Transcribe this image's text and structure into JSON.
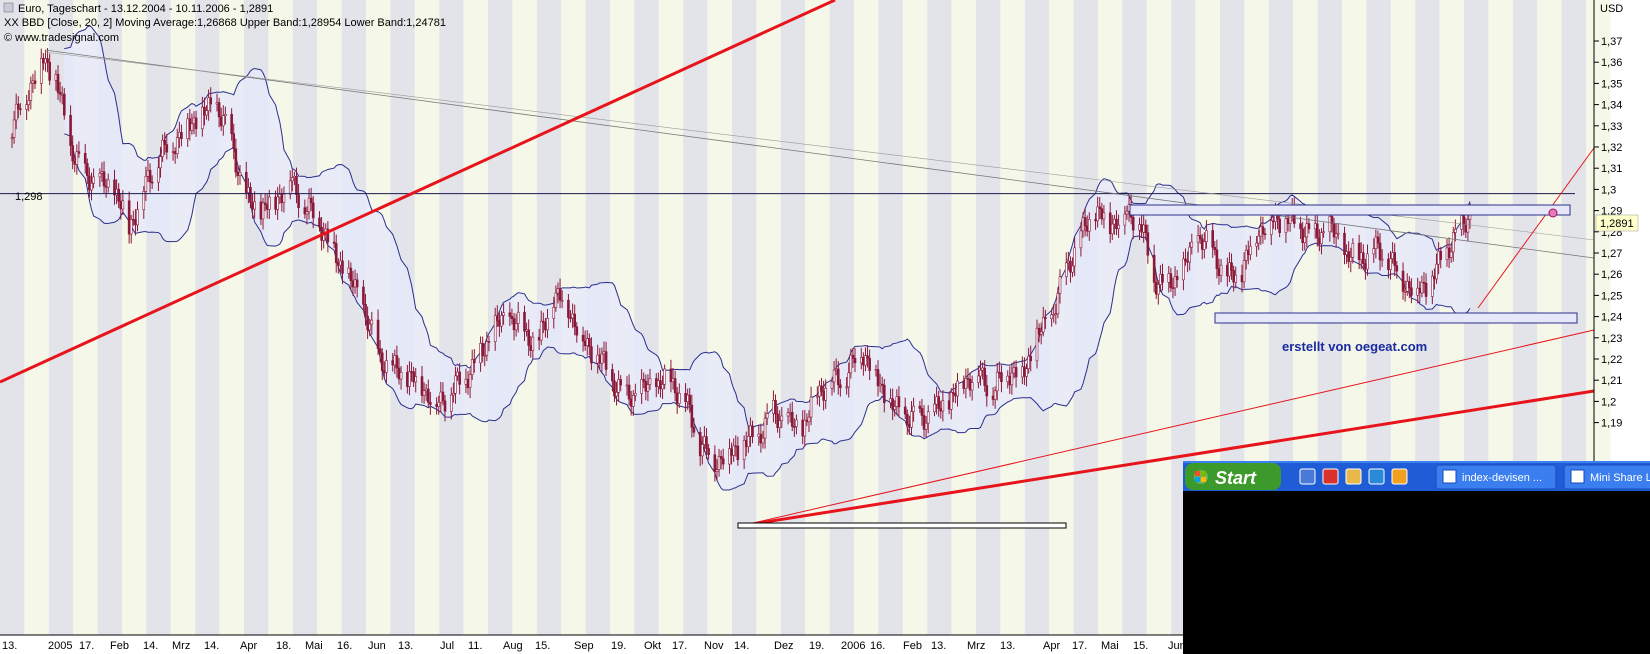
{
  "header": {
    "line1": "Euro, Tageschart - 13.12.2004 - 10.11.2006 - 1,2891",
    "line2": "XX BBD [Close, 20, 2] Moving Average:1,26868 Upper Band:1,28954 Lower Band:1,24781",
    "line3": "© www.tradesignal.com"
  },
  "colors": {
    "band_fill": "#e6e8fa",
    "band_line": "#2b2f8c",
    "stripe_gray": "#e2e4ea",
    "stripe_cream": "#f5f8e8",
    "candle": "#8a1838",
    "trend_red": "#e8141c",
    "level_line": "#1a1a50",
    "annotation_text": "#1a2aa0",
    "taskbar_blue": "#1f5dd6",
    "start_green": "#3c9a2c"
  },
  "chart_data": {
    "type": "candlestick",
    "instrument": "Euro",
    "interval": "Tageschart",
    "range": "13.12.2004 - 10.11.2006",
    "last_value": 1.2891,
    "currency_label": "USD",
    "ylim": [
      1.18,
      1.38
    ],
    "y_ticks": [
      1.37,
      1.36,
      1.35,
      1.34,
      1.33,
      1.32,
      1.31,
      1.3,
      1.29,
      1.28,
      1.27,
      1.26,
      1.25,
      1.24,
      1.23,
      1.22,
      1.21,
      1.2,
      1.19
    ],
    "y_tick_labels": [
      "1,37",
      "1,36",
      "1,35",
      "1,34",
      "1,33",
      "1,32",
      "1,31",
      "1,3",
      "1,29",
      "1,28",
      "1,27",
      "1,26",
      "1,25",
      "1,24",
      "1,23",
      "1,22",
      "1,21",
      "1,2",
      "1,19"
    ],
    "x_tick_labels": [
      "13.",
      "2005",
      "17.",
      "Feb",
      "14.",
      "Mrz",
      "14.",
      "Apr",
      "18.",
      "Mai",
      "16.",
      "Jun",
      "13.",
      "Jul",
      "11.",
      "Aug",
      "15.",
      "Sep",
      "19.",
      "Okt",
      "17.",
      "Nov",
      "14.",
      "Dez",
      "19.",
      "2006",
      "16.",
      "Feb",
      "13.",
      "Mrz",
      "13.",
      "Apr",
      "17.",
      "Mai",
      "15.",
      "Jun"
    ],
    "level_label": "1,298",
    "level_value": 1.298,
    "last_value_label": "1,2891",
    "annotation": "erstellt von oegeat.com",
    "bollinger": {
      "source": "Close",
      "period": 20,
      "deviations": 2,
      "moving_average": 1.26868,
      "upper_band": 1.28954,
      "lower_band": 1.24781
    },
    "close_path": [
      {
        "date": "2004-12-13",
        "close": 1.33
      },
      {
        "date": "2004-12-20",
        "close": 1.345
      },
      {
        "date": "2004-12-28",
        "close": 1.362
      },
      {
        "date": "2005-01-03",
        "close": 1.352
      },
      {
        "date": "2005-01-10",
        "close": 1.32
      },
      {
        "date": "2005-01-17",
        "close": 1.307
      },
      {
        "date": "2005-01-24",
        "close": 1.303
      },
      {
        "date": "2005-01-31",
        "close": 1.3
      },
      {
        "date": "2005-02-07",
        "close": 1.282
      },
      {
        "date": "2005-02-14",
        "close": 1.3
      },
      {
        "date": "2005-02-21",
        "close": 1.315
      },
      {
        "date": "2005-02-28",
        "close": 1.322
      },
      {
        "date": "2005-03-07",
        "close": 1.33
      },
      {
        "date": "2005-03-14",
        "close": 1.335
      },
      {
        "date": "2005-03-21",
        "close": 1.34
      },
      {
        "date": "2005-03-28",
        "close": 1.322
      },
      {
        "date": "2005-04-04",
        "close": 1.295
      },
      {
        "date": "2005-04-11",
        "close": 1.29
      },
      {
        "date": "2005-04-18",
        "close": 1.295
      },
      {
        "date": "2005-04-25",
        "close": 1.305
      },
      {
        "date": "2005-05-02",
        "close": 1.292
      },
      {
        "date": "2005-05-09",
        "close": 1.285
      },
      {
        "date": "2005-05-16",
        "close": 1.27
      },
      {
        "date": "2005-05-23",
        "close": 1.258
      },
      {
        "date": "2005-05-30",
        "close": 1.245
      },
      {
        "date": "2005-06-06",
        "close": 1.222
      },
      {
        "date": "2005-06-13",
        "close": 1.215
      },
      {
        "date": "2005-06-20",
        "close": 1.212
      },
      {
        "date": "2005-06-27",
        "close": 1.208
      },
      {
        "date": "2005-07-04",
        "close": 1.198
      },
      {
        "date": "2005-07-11",
        "close": 1.205
      },
      {
        "date": "2005-07-18",
        "close": 1.212
      },
      {
        "date": "2005-07-25",
        "close": 1.222
      },
      {
        "date": "2005-08-01",
        "close": 1.235
      },
      {
        "date": "2005-08-08",
        "close": 1.24
      },
      {
        "date": "2005-08-15",
        "close": 1.232
      },
      {
        "date": "2005-08-22",
        "close": 1.228
      },
      {
        "date": "2005-08-29",
        "close": 1.25
      },
      {
        "date": "2005-09-05",
        "close": 1.245
      },
      {
        "date": "2005-09-12",
        "close": 1.228
      },
      {
        "date": "2005-09-19",
        "close": 1.222
      },
      {
        "date": "2005-09-26",
        "close": 1.21
      },
      {
        "date": "2005-10-03",
        "close": 1.202
      },
      {
        "date": "2005-10-10",
        "close": 1.205
      },
      {
        "date": "2005-10-17",
        "close": 1.208
      },
      {
        "date": "2005-10-24",
        "close": 1.21
      },
      {
        "date": "2005-10-31",
        "close": 1.2
      },
      {
        "date": "2005-11-07",
        "close": 1.18
      },
      {
        "date": "2005-11-14",
        "close": 1.172
      },
      {
        "date": "2005-11-21",
        "close": 1.176
      },
      {
        "date": "2005-11-28",
        "close": 1.18
      },
      {
        "date": "2005-12-05",
        "close": 1.184
      },
      {
        "date": "2005-12-12",
        "close": 1.195
      },
      {
        "date": "2005-12-19",
        "close": 1.19
      },
      {
        "date": "2005-12-26",
        "close": 1.186
      },
      {
        "date": "2006-01-02",
        "close": 1.205
      },
      {
        "date": "2006-01-09",
        "close": 1.21
      },
      {
        "date": "2006-01-16",
        "close": 1.212
      },
      {
        "date": "2006-01-23",
        "close": 1.225
      },
      {
        "date": "2006-01-30",
        "close": 1.212
      },
      {
        "date": "2006-02-06",
        "close": 1.198
      },
      {
        "date": "2006-02-13",
        "close": 1.193
      },
      {
        "date": "2006-02-20",
        "close": 1.192
      },
      {
        "date": "2006-02-27",
        "close": 1.195
      },
      {
        "date": "2006-03-06",
        "close": 1.2
      },
      {
        "date": "2006-03-13",
        "close": 1.21
      },
      {
        "date": "2006-03-20",
        "close": 1.213
      },
      {
        "date": "2006-03-27",
        "close": 1.205
      },
      {
        "date": "2006-04-03",
        "close": 1.215
      },
      {
        "date": "2006-04-10",
        "close": 1.212
      },
      {
        "date": "2006-04-17",
        "close": 1.23
      },
      {
        "date": "2006-04-24",
        "close": 1.24
      },
      {
        "date": "2006-05-01",
        "close": 1.262
      },
      {
        "date": "2006-05-08",
        "close": 1.278
      },
      {
        "date": "2006-05-15",
        "close": 1.29
      },
      {
        "date": "2006-05-22",
        "close": 1.284
      },
      {
        "date": "2006-05-29",
        "close": 1.289
      },
      {
        "date": "2006-06-05",
        "close": 1.286
      },
      {
        "date": "2006-06-12",
        "close": 1.258
      },
      {
        "date": "2006-06-19",
        "close": 1.255
      },
      {
        "date": "2006-06-26",
        "close": 1.262
      },
      {
        "date": "2006-07-03",
        "close": 1.278
      },
      {
        "date": "2006-07-10",
        "close": 1.271
      },
      {
        "date": "2006-07-17",
        "close": 1.258
      },
      {
        "date": "2006-07-24",
        "close": 1.262
      },
      {
        "date": "2006-07-31",
        "close": 1.28
      },
      {
        "date": "2006-08-07",
        "close": 1.285
      },
      {
        "date": "2006-08-14",
        "close": 1.287
      },
      {
        "date": "2006-08-21",
        "close": 1.282
      },
      {
        "date": "2006-08-28",
        "close": 1.278
      },
      {
        "date": "2006-09-04",
        "close": 1.282
      },
      {
        "date": "2006-09-11",
        "close": 1.27
      },
      {
        "date": "2006-09-18",
        "close": 1.267
      },
      {
        "date": "2006-09-25",
        "close": 1.272
      },
      {
        "date": "2006-10-02",
        "close": 1.268
      },
      {
        "date": "2006-10-09",
        "close": 1.257
      },
      {
        "date": "2006-10-16",
        "close": 1.252
      },
      {
        "date": "2006-10-23",
        "close": 1.258
      },
      {
        "date": "2006-10-30",
        "close": 1.272
      },
      {
        "date": "2006-11-06",
        "close": 1.282
      },
      {
        "date": "2006-11-10",
        "close": 1.2891
      }
    ]
  },
  "taskbar": {
    "start_label": "Start",
    "quicklaunch_icons": [
      "browser-icon",
      "media-icon",
      "folder-icon",
      "ie-icon",
      "clock-icon"
    ],
    "tasks": [
      {
        "label": "index-devisen ...",
        "icon": "ie-icon"
      },
      {
        "label": "Mini Share Li",
        "icon": "ie-icon"
      }
    ]
  }
}
